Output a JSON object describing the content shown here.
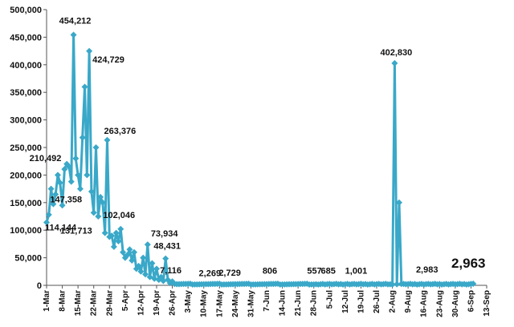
{
  "chart_data": {
    "type": "line",
    "title": "",
    "xlabel": "",
    "ylabel": "",
    "ylim": [
      0,
      500000
    ],
    "y_ticks": [
      0,
      50000,
      100000,
      150000,
      200000,
      250000,
      300000,
      350000,
      400000,
      450000,
      500000
    ],
    "y_tick_labels": [
      "0",
      "50,000",
      "100,000",
      "150,000",
      "200,000",
      "250,000",
      "300,000",
      "350,000",
      "400,000",
      "450,000",
      "500,000"
    ],
    "x_ticks": [
      "1-Mar",
      "8-Mar",
      "15-Mar",
      "22-Mar",
      "29-Mar",
      "5-Apr",
      "12-Apr",
      "19-Apr",
      "26-Apr",
      "3-May",
      "10-May",
      "17-May",
      "24-May",
      "31-May",
      "7-Jun",
      "14-Jun",
      "21-Jun",
      "28-Jun",
      "5-Jul",
      "12-Jul",
      "19-Jul",
      "26-Jul",
      "2-Aug",
      "9-Aug",
      "16-Aug",
      "23-Aug",
      "30-Aug",
      "6-Sep",
      "13-Sep"
    ],
    "series_color": "#3aa8c8",
    "grid": false,
    "legend": "none",
    "series": [
      {
        "values": [
          [
            0,
            114144
          ],
          [
            1,
            128000
          ],
          [
            2,
            175000
          ],
          [
            3,
            147358
          ],
          [
            4,
            165000
          ],
          [
            5,
            200000
          ],
          [
            6,
            186000
          ],
          [
            7,
            145000
          ],
          [
            8,
            210492
          ],
          [
            9,
            220000
          ],
          [
            10,
            215000
          ],
          [
            11,
            188000
          ],
          [
            12,
            454212
          ],
          [
            13,
            230000
          ],
          [
            14,
            200000
          ],
          [
            15,
            175000
          ],
          [
            16,
            268000
          ],
          [
            17,
            360000
          ],
          [
            18,
            200000
          ],
          [
            19,
            424729
          ],
          [
            20,
            170000
          ],
          [
            21,
            131713
          ],
          [
            22,
            250000
          ],
          [
            23,
            125000
          ],
          [
            24,
            160000
          ],
          [
            25,
            150000
          ],
          [
            26,
            95000
          ],
          [
            27,
            263376
          ],
          [
            28,
            88000
          ],
          [
            29,
            90000
          ],
          [
            30,
            70000
          ],
          [
            31,
            95000
          ],
          [
            32,
            80000
          ],
          [
            33,
            102046
          ],
          [
            34,
            60000
          ],
          [
            35,
            50000
          ],
          [
            36,
            55000
          ],
          [
            37,
            65000
          ],
          [
            38,
            45000
          ],
          [
            39,
            60000
          ],
          [
            40,
            30000
          ],
          [
            41,
            35000
          ],
          [
            42,
            25000
          ],
          [
            43,
            50000
          ],
          [
            44,
            20000
          ],
          [
            45,
            73934
          ],
          [
            46,
            15000
          ],
          [
            47,
            40000
          ],
          [
            48,
            12000
          ],
          [
            49,
            30000
          ],
          [
            50,
            10000
          ],
          [
            51,
            15000
          ],
          [
            52,
            8000
          ],
          [
            53,
            48431
          ],
          [
            54,
            10000
          ],
          [
            55,
            4000
          ],
          [
            56,
            7116
          ],
          [
            57,
            2500
          ]
        ],
        "segments": [
          [
            57,
            2000
          ],
          [
            120,
            2000
          ],
          [
            123,
            2500
          ],
          [
            153,
            2000
          ],
          [
            154,
            1500
          ],
          [
            155,
            402830
          ],
          [
            156,
            2000
          ],
          [
            157,
            150000
          ],
          [
            158,
            2500
          ],
          [
            160,
            2000
          ],
          [
            190,
            2963
          ]
        ]
      }
    ],
    "data_labels": [
      {
        "x": 0,
        "y": 114144,
        "text": "114,144"
      },
      {
        "x": 3,
        "y": 147358,
        "text": "147,358"
      },
      {
        "x": 8,
        "y": 210492,
        "text": "210,492"
      },
      {
        "x": 12,
        "y": 454212,
        "text": "454,212"
      },
      {
        "x": 19,
        "y": 424729,
        "text": "424,729"
      },
      {
        "x": 21,
        "y": 131713,
        "text": "131,713"
      },
      {
        "x": 27,
        "y": 263376,
        "text": "263,376"
      },
      {
        "x": 33,
        "y": 102046,
        "text": "102,046"
      },
      {
        "x": 45,
        "y": 73934,
        "text": "73,934"
      },
      {
        "x": 53,
        "y": 48431,
        "text": "48,431"
      },
      {
        "x": 56,
        "y": 7116,
        "text": "7,116"
      },
      {
        "x": 72,
        "y": 2269,
        "text": "2,269"
      },
      {
        "x": 78,
        "y": 2729,
        "text": "2,729"
      },
      {
        "x": 98,
        "y": 806,
        "text": "806"
      },
      {
        "x": 120,
        "y": 557,
        "text": "557"
      },
      {
        "x": 129,
        "y": 685,
        "text": "685"
      },
      {
        "x": 135,
        "y": 1001,
        "text": "1,001"
      },
      {
        "x": 155,
        "y": 402830,
        "text": "402,830"
      },
      {
        "x": 168,
        "y": 2983,
        "text": "2,983"
      },
      {
        "x": 190,
        "y": 2963,
        "text": "2,963"
      }
    ]
  }
}
